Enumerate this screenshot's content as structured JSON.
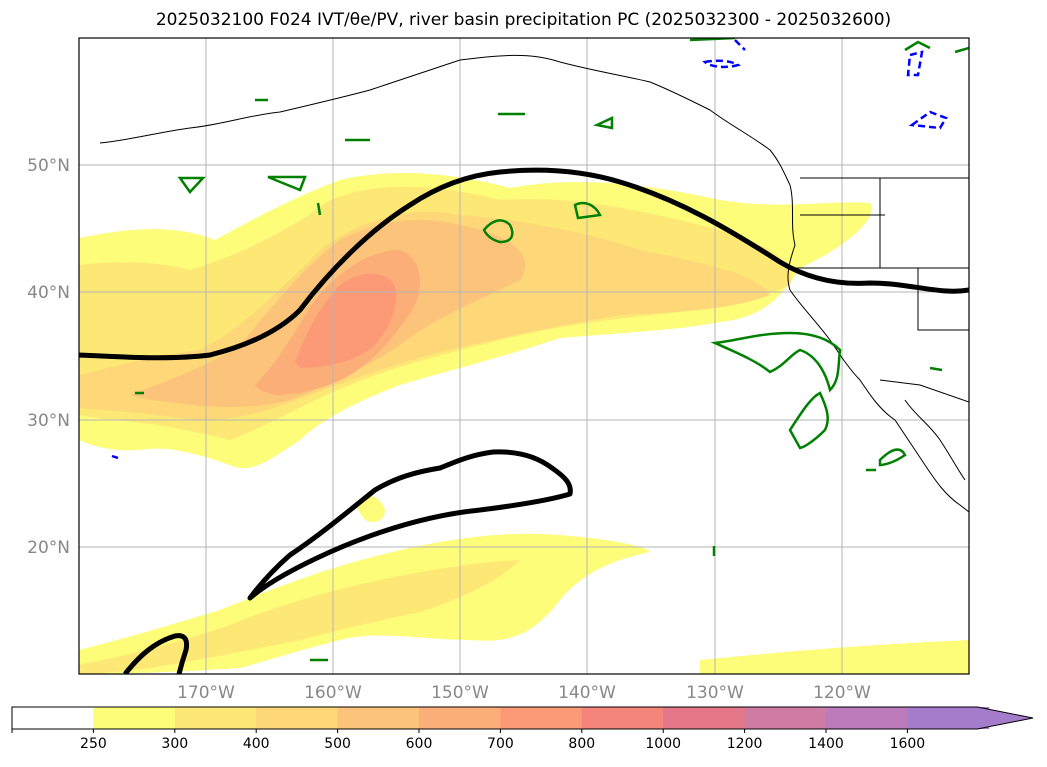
{
  "title": "2025032100 F024 IVT/θe/PV, river basin precipitation PC (2025032300 - 2025032600)",
  "map": {
    "projection": "PlateCarree",
    "lon_range": [
      180,
      250
    ],
    "lat_range": [
      10,
      60
    ],
    "lat_ticks": [
      "20°N",
      "30°N",
      "40°N",
      "50°N"
    ],
    "lon_ticks": [
      "170°W",
      "160°W",
      "150°W",
      "140°W",
      "130°W",
      "120°W"
    ],
    "gridlines": true,
    "fill_color_layer": "IVT",
    "contour_colors": {
      "pv_line": "#000000",
      "precip_pc_positive": "#008000",
      "precip_pc_negative": "#0000ff"
    }
  },
  "colorbar": {
    "levels": [
      "250",
      "300",
      "400",
      "500",
      "600",
      "700",
      "800",
      "1000",
      "1200",
      "1400",
      "1600"
    ],
    "colors": [
      "#ffffff",
      "#fdfd7a",
      "#fde876",
      "#fdd778",
      "#fcc47a",
      "#fcae78",
      "#fc9a78",
      "#f5847a",
      "#e4788a",
      "#cf7ca4",
      "#bc7cbc",
      "#a57ccc"
    ],
    "extend": "max"
  }
}
